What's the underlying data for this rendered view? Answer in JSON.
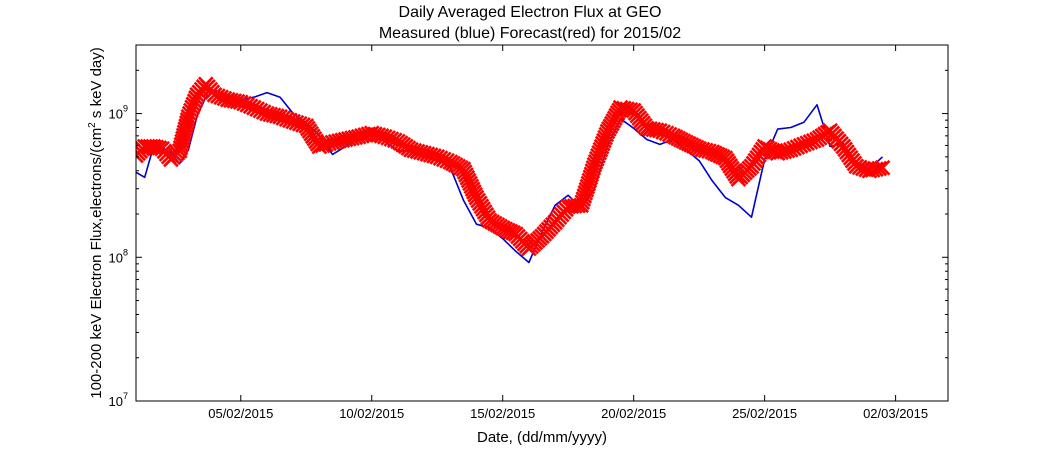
{
  "chart_data": {
    "type": "line",
    "title_line1": "Daily Averaged Electron Flux at GEO",
    "title_line2": "Measured (blue) Forecast(red) for 2015/02",
    "xlabel": "Date, (dd/mm/yyyy)",
    "ylabel": "100-200 keV Electron Flux,electrons/(cm² s keV day)",
    "y_scale": "log",
    "ylim": [
      10000000,
      3000000000
    ],
    "xlim": [
      "2015-02-01",
      "2015-03-04"
    ],
    "grid": false,
    "x_ticks": [
      "05/02/2015",
      "10/02/2015",
      "15/02/2015",
      "20/02/2015",
      "25/02/2015",
      "02/03/2015"
    ],
    "x_tick_dates": [
      "2015-02-05",
      "2015-02-10",
      "2015-02-15",
      "2015-02-20",
      "2015-02-25",
      "2015-03-02"
    ],
    "y_ticks": [
      {
        "label": "10",
        "exp": "7",
        "value": 10000000
      },
      {
        "label": "10",
        "exp": "8",
        "value": 100000000
      },
      {
        "label": "10",
        "exp": "9",
        "value": 1000000000
      }
    ],
    "series": [
      {
        "color": "#0000cc",
        "style": "line",
        "x": [
          "2015-02-01 00:00",
          "2015-02-01 08:00",
          "2015-02-01 16:00",
          "2015-02-02 00:00",
          "2015-02-02 08:00",
          "2015-02-02 16:00",
          "2015-02-03 00:00",
          "2015-02-03 08:00",
          "2015-02-03 16:00",
          "2015-02-04 00:00",
          "2015-02-04 12:00",
          "2015-02-05 00:00",
          "2015-02-05 12:00",
          "2015-02-06 00:00",
          "2015-02-06 12:00",
          "2015-02-07 00:00",
          "2015-02-07 12:00",
          "2015-02-08 00:00",
          "2015-02-08 12:00",
          "2015-02-09 00:00",
          "2015-02-09 12:00",
          "2015-02-10 00:00",
          "2015-02-10 12:00",
          "2015-02-11 00:00",
          "2015-02-11 12:00",
          "2015-02-12 00:00",
          "2015-02-12 12:00",
          "2015-02-13 00:00",
          "2015-02-13 12:00",
          "2015-02-14 00:00",
          "2015-02-14 12:00",
          "2015-02-15 00:00",
          "2015-02-15 12:00",
          "2015-02-16 00:00",
          "2015-02-16 12:00",
          "2015-02-17 00:00",
          "2015-02-17 12:00",
          "2015-02-18 00:00",
          "2015-02-18 12:00",
          "2015-02-19 00:00",
          "2015-02-19 12:00",
          "2015-02-20 00:00",
          "2015-02-20 12:00",
          "2015-02-21 00:00",
          "2015-02-21 12:00",
          "2015-02-22 00:00",
          "2015-02-22 12:00",
          "2015-02-23 00:00",
          "2015-02-23 12:00",
          "2015-02-24 00:00",
          "2015-02-24 12:00",
          "2015-02-25 00:00",
          "2015-02-25 12:00",
          "2015-02-26 00:00",
          "2015-02-26 12:00",
          "2015-02-27 00:00",
          "2015-02-27 12:00",
          "2015-02-28 00:00",
          "2015-02-28 12:00",
          "2015-03-01 00:00",
          "2015-03-01 12:00"
        ],
        "y": [
          390000000.0,
          360000000.0,
          590000000.0,
          580000000.0,
          530000000.0,
          450000000.0,
          560000000.0,
          960000000.0,
          1300000000.0,
          1450000000.0,
          1350000000.0,
          1250000000.0,
          1300000000.0,
          1400000000.0,
          1300000000.0,
          1000000000.0,
          860000000.0,
          700000000.0,
          520000000.0,
          590000000.0,
          660000000.0,
          710000000.0,
          640000000.0,
          550000000.0,
          550000000.0,
          500000000.0,
          480000000.0,
          420000000.0,
          250000000.0,
          170000000.0,
          160000000.0,
          135000000.0,
          110000000.0,
          92000000.0,
          150000000.0,
          230000000.0,
          270000000.0,
          220000000.0,
          300000000.0,
          600000000.0,
          920000000.0,
          790000000.0,
          660000000.0,
          610000000.0,
          660000000.0,
          560000000.0,
          470000000.0,
          340000000.0,
          260000000.0,
          230000000.0,
          190000000.0,
          480000000.0,
          780000000.0,
          800000000.0,
          870000000.0,
          1150000000.0,
          590000000.0,
          620000000.0,
          440000000.0,
          410000000.0,
          500000000.0
        ]
      },
      {
        "color": "#ff0000",
        "style": "x-markers",
        "x": [
          "2015-02-01 00:00",
          "2015-02-01 08:00",
          "2015-02-01 16:00",
          "2015-02-02 00:00",
          "2015-02-02 08:00",
          "2015-02-02 16:00",
          "2015-02-03 00:00",
          "2015-02-03 08:00",
          "2015-02-03 16:00",
          "2015-02-04 00:00",
          "2015-02-04 12:00",
          "2015-02-05 00:00",
          "2015-02-05 12:00",
          "2015-02-06 00:00",
          "2015-02-06 12:00",
          "2015-02-07 00:00",
          "2015-02-07 12:00",
          "2015-02-08 00:00",
          "2015-02-08 12:00",
          "2015-02-09 00:00",
          "2015-02-09 12:00",
          "2015-02-10 00:00",
          "2015-02-10 12:00",
          "2015-02-11 00:00",
          "2015-02-11 12:00",
          "2015-02-12 00:00",
          "2015-02-12 12:00",
          "2015-02-13 00:00",
          "2015-02-13 12:00",
          "2015-02-14 00:00",
          "2015-02-14 12:00",
          "2015-02-15 00:00",
          "2015-02-15 12:00",
          "2015-02-16 00:00",
          "2015-02-16 12:00",
          "2015-02-17 00:00",
          "2015-02-17 12:00",
          "2015-02-18 00:00",
          "2015-02-18 12:00",
          "2015-02-19 00:00",
          "2015-02-19 12:00",
          "2015-02-20 00:00",
          "2015-02-20 12:00",
          "2015-02-21 00:00",
          "2015-02-21 12:00",
          "2015-02-22 00:00",
          "2015-02-22 12:00",
          "2015-02-23 00:00",
          "2015-02-23 12:00",
          "2015-02-24 00:00",
          "2015-02-24 12:00",
          "2015-02-25 00:00",
          "2015-02-25 12:00",
          "2015-02-26 00:00",
          "2015-02-26 12:00",
          "2015-02-27 00:00",
          "2015-02-27 12:00",
          "2015-02-28 00:00",
          "2015-02-28 12:00",
          "2015-03-01 00:00",
          "2015-03-01 12:00"
        ],
        "y": [
          510000000.0,
          590000000.0,
          590000000.0,
          570000000.0,
          480000000.0,
          550000000.0,
          950000000.0,
          1350000000.0,
          1600000000.0,
          1350000000.0,
          1250000000.0,
          1200000000.0,
          1100000000.0,
          1000000000.0,
          950000000.0,
          880000000.0,
          820000000.0,
          590000000.0,
          630000000.0,
          660000000.0,
          690000000.0,
          730000000.0,
          690000000.0,
          640000000.0,
          560000000.0,
          530000000.0,
          500000000.0,
          460000000.0,
          410000000.0,
          260000000.0,
          180000000.0,
          160000000.0,
          145000000.0,
          115000000.0,
          140000000.0,
          175000000.0,
          225000000.0,
          230000000.0,
          440000000.0,
          750000000.0,
          1100000000.0,
          1050000000.0,
          790000000.0,
          760000000.0,
          700000000.0,
          630000000.0,
          570000000.0,
          540000000.0,
          490000000.0,
          350000000.0,
          430000000.0,
          590000000.0,
          530000000.0,
          560000000.0,
          610000000.0,
          660000000.0,
          760000000.0,
          590000000.0,
          430000000.0,
          400000000.0,
          420000000.0
        ]
      }
    ]
  }
}
